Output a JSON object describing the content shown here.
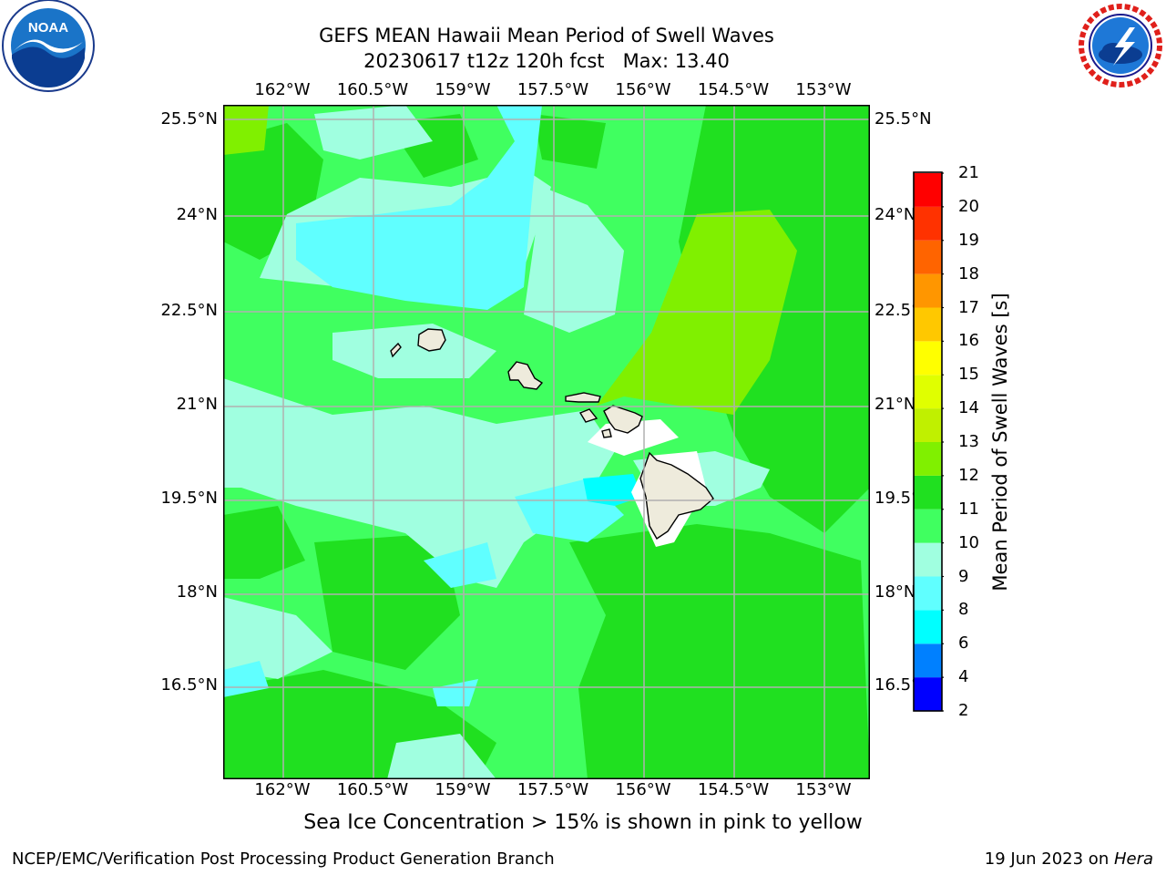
{
  "title_line1": "GEFS MEAN Hawaii Mean Period of Swell Waves",
  "title_line2": "20230617 t12z 120h fcst   Max: 13.40",
  "subtitle": "Sea Ice Concentration > 15% is shown in pink to yellow",
  "footer_left": "NCEP/EMC/Verification Post Processing Product Generation Branch",
  "footer_right_date": "19 Jun 2023 on ",
  "footer_right_host": "Hera",
  "logos": {
    "left": "noaa-logo",
    "right": "nws-logo"
  },
  "map": {
    "lon_labels": [
      "162°W",
      "160.5°W",
      "159°W",
      "157.5°W",
      "156°W",
      "154.5°W",
      "153°W"
    ],
    "lat_labels": [
      "25.5°N",
      "24°N",
      "22.5°N",
      "21°N",
      "19.5°N",
      "18°N",
      "16.5°N"
    ],
    "lon_range": [
      -163,
      -152.25
    ],
    "lat_range": [
      14.9,
      25.7
    ],
    "grid": true,
    "land_color": "#eeebdc",
    "islands": [
      "kauai",
      "niihau",
      "oahu",
      "molokai",
      "lanai",
      "maui",
      "kahoolawe",
      "hawaii"
    ]
  },
  "colorbar": {
    "title": "Mean Period of Swell Waves [s]",
    "levels": [
      "2",
      "4",
      "6",
      "8",
      "9",
      "10",
      "11",
      "12",
      "13",
      "14",
      "15",
      "16",
      "17",
      "18",
      "19",
      "20",
      "21"
    ],
    "colors": [
      "#0000ff",
      "#0080ff",
      "#00ffff",
      "#60ffff",
      "#a0ffe0",
      "#40ff60",
      "#20e020",
      "#80f000",
      "#c0f000",
      "#e0ff00",
      "#ffff00",
      "#ffc800",
      "#ff9600",
      "#ff6400",
      "#ff3200",
      "#ff0000"
    ]
  },
  "chart_data": {
    "type": "heatmap",
    "title": "GEFS MEAN Hawaii Mean Period of Swell Waves",
    "subtitle": "20230617 t12z 120h fcst   Max: 13.40",
    "max_value": 13.4,
    "units": "s",
    "x_ticks": [
      "162°W",
      "160.5°W",
      "159°W",
      "157.5°W",
      "156°W",
      "154.5°W",
      "153°W"
    ],
    "y_ticks": [
      "25.5°N",
      "24°N",
      "22.5°N",
      "21°N",
      "19.5°N",
      "18°N",
      "16.5°N"
    ]
  }
}
